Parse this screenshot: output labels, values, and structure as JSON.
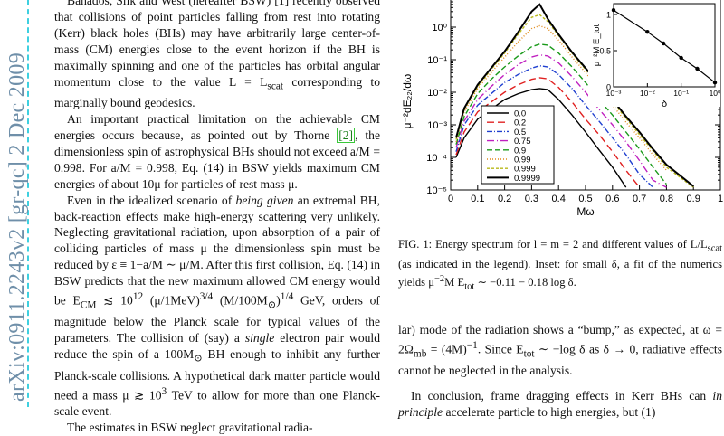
{
  "sidebar": {
    "arxiv_id": "arXiv:0911.2243v2  [gr-qc]  2 Dec 2009"
  },
  "left_column": {
    "p1": "Banados, Silk and West (hereafter BSW) [1] recently observed that collisions of point particles falling from rest into rotating (Kerr) black holes (BHs) may have arbitrarily large center-of-mass (CM) energies close to the event horizon if the BH is maximally spinning and one of the particles has orbital angular momentum close to the value L = L",
    "p1_sub": "scat",
    "p1_end": " corresponding to marginally bound geodesics.",
    "p2a": "An important practical limitation on the achievable CM energies occurs because, as pointed out by Thorne ",
    "p2_cite": "[2]",
    "p2b": ", the dimensionless spin of astrophysical BHs should not exceed a/M = 0.998. For a/M = 0.998, Eq. (14) in BSW yields maximum CM energies of about 10μ for particles of rest mass μ.",
    "p3a": "Even in the idealized scenario of ",
    "p3_em": "being given",
    "p3b": " an extremal BH, back-reaction effects make high-energy scattering very unlikely. Neglecting gravitational radiation, upon absorption of a pair of colliding particles of mass μ the dimensionless spin must be reduced by ε ≡ 1−a/M ∼ μ/M. After this first collision, Eq. (14) in BSW predicts that the new maximum allowed CM energy would be E",
    "p3_sub": "CM",
    "p3c": " ≲ 10",
    "p3_sup": "12",
    "p3d": " (μ/1MeV)",
    "p3_sup2": "3/4",
    "p3e": " (M/100M",
    "p3_sun": "⊙",
    "p3f": ")",
    "p3_sup3": "1/4",
    "p3g": " GeV, orders of magnitude below the Planck scale for typical values of the parameters. The collision of (say) a ",
    "p3_em2": "single",
    "p3h": " electron pair would reduce the spin of a 100M",
    "p3i": " BH enough to inhibit any further Planck-scale collisions. A hypothetical dark matter particle would need a mass μ ≳ 10",
    "p3_sup4": "3",
    "p3j": " TeV to allow for more than one Planck-scale event.",
    "p4": "The estimates in BSW neglect gravitational radia-"
  },
  "figure": {
    "ylabel": "μ⁻²dE₂₂/dω",
    "xlabel": "Mω",
    "y_ticks": [
      "10⁰",
      "10⁻¹",
      "10⁻²",
      "10⁻³",
      "10⁻⁴",
      "10⁻⁵"
    ],
    "x_ticks": [
      "0",
      "0.1",
      "0.2",
      "0.3",
      "0.4",
      "0.5",
      "0.6",
      "0.7",
      "0.8",
      "0.9",
      "1"
    ],
    "inset": {
      "ylabel": "μ⁻²M E_tot",
      "xlabel": "δ",
      "y_ticks": [
        "0",
        "0.5",
        "1"
      ],
      "x_ticks": [
        "10⁻³",
        "10⁻²",
        "10⁻¹",
        "10⁰"
      ]
    },
    "legend": [
      "0.0",
      "0.2",
      "0.5",
      "0.75",
      "0.9",
      "0.99",
      "0.999",
      "0.9999"
    ]
  },
  "chart_data": {
    "type": "line",
    "x": [
      0.02,
      0.05,
      0.1,
      0.15,
      0.2,
      0.25,
      0.3,
      0.33,
      0.36,
      0.4,
      0.45,
      0.5,
      0.55,
      0.6,
      0.65,
      0.7,
      0.75,
      0.8,
      0.9,
      1.0
    ],
    "series": [
      {
        "name": "0.0",
        "color": "#000000",
        "dash": "",
        "values": [
          0.0001,
          0.0004,
          0.0015,
          0.003,
          0.006,
          0.009,
          0.012,
          0.013,
          0.012,
          0.006,
          0.002,
          0.0006,
          0.00017,
          5e-05,
          1.2e-05,
          null,
          null,
          null,
          null,
          null
        ]
      },
      {
        "name": "0.2",
        "color": "#e02020",
        "dash": "8,4",
        "values": [
          0.00012,
          0.0006,
          0.0025,
          0.005,
          0.01,
          0.017,
          0.025,
          0.028,
          0.026,
          0.014,
          0.005,
          0.0015,
          0.0005,
          0.00015,
          4e-05,
          1.2e-05,
          null,
          null,
          null,
          null
        ]
      },
      {
        "name": "0.5",
        "color": "#2040d0",
        "dash": "6,2,1,2",
        "values": [
          0.00015,
          0.001,
          0.004,
          0.009,
          0.02,
          0.035,
          0.055,
          0.065,
          0.06,
          0.035,
          0.013,
          0.004,
          0.0013,
          0.0004,
          0.00012,
          3e-05,
          1.2e-05,
          null,
          null,
          null
        ]
      },
      {
        "name": "0.75",
        "color": "#c020c0",
        "dash": "8,3,1,3",
        "values": [
          0.0002,
          0.0013,
          0.006,
          0.015,
          0.035,
          0.07,
          0.12,
          0.14,
          0.13,
          0.08,
          0.03,
          0.01,
          0.003,
          0.001,
          0.0003,
          8e-05,
          2e-05,
          1.2e-05,
          null,
          null
        ]
      },
      {
        "name": "0.9",
        "color": "#1a9a1a",
        "dash": "6,3",
        "values": [
          0.00025,
          0.0018,
          0.009,
          0.025,
          0.06,
          0.13,
          0.25,
          0.3,
          0.28,
          0.16,
          0.06,
          0.02,
          0.006,
          0.002,
          0.0006,
          0.00018,
          5e-05,
          1.5e-05,
          null,
          null
        ]
      },
      {
        "name": "0.99",
        "color": "#e08a1a",
        "dash": "1,2",
        "values": [
          0.0003,
          0.0025,
          0.013,
          0.04,
          0.12,
          0.35,
          0.9,
          1.1,
          0.9,
          0.4,
          0.12,
          0.04,
          0.012,
          0.004,
          0.0012,
          0.0004,
          0.00012,
          4e-05,
          null,
          null
        ]
      },
      {
        "name": "0.999",
        "color": "#b8b81a",
        "dash": "3,2",
        "values": [
          0.00035,
          0.003,
          0.015,
          0.05,
          0.16,
          0.6,
          2.0,
          2.4,
          1.5,
          0.55,
          0.16,
          0.05,
          0.016,
          0.005,
          0.0016,
          0.0005,
          0.00016,
          5e-05,
          1.2e-05,
          null
        ]
      },
      {
        "name": "0.9999",
        "color": "#000000",
        "dash": "",
        "values": [
          0.0004,
          0.0032,
          0.017,
          0.055,
          0.18,
          0.7,
          3.0,
          5.0,
          1.8,
          0.6,
          0.17,
          0.055,
          0.018,
          0.006,
          0.0018,
          0.0006,
          0.00018,
          6e-05,
          1.3e-05,
          null
        ]
      }
    ],
    "xlim": [
      0,
      1
    ],
    "ylim": [
      1e-05,
      10
    ],
    "yscale": "log",
    "xlabel": "Mω",
    "ylabel": "μ⁻²dE₂₂/dω",
    "legend_position": "bottom-center",
    "inset": {
      "type": "scatter",
      "x": [
        0.001,
        0.01,
        0.03,
        0.1,
        0.3,
        1.0
      ],
      "y": [
        1.06,
        0.76,
        0.6,
        0.4,
        0.25,
        0.06
      ],
      "xscale": "log",
      "xlim": [
        0.001,
        1
      ],
      "ylim": [
        0,
        1.15
      ],
      "xlabel": "δ",
      "ylabel": "μ⁻²M E_tot"
    }
  },
  "caption": {
    "text": "FIG. 1: Energy spectrum for l = m = 2 and different values of L/L",
    "sub": "scat",
    "text2": " (as indicated in the legend). Inset: for small δ, a fit of the numerics yields μ",
    "sup": "−2",
    "text3": "M E",
    "sub2": "tot",
    "text4": " ∼ −0.11 − 0.18 log δ."
  },
  "right_column": {
    "p1a": "lar) mode of the radiation shows a “bump,” as expected, at ω = 2Ω",
    "p1_sub": "mb",
    "p1b": " = (4M)",
    "p1_sup": "−1",
    "p1c": ". Since E",
    "p1_sub2": "tot",
    "p1d": " ∼ −log δ as δ → 0, radiative effects cannot be neglected in the analysis.",
    "p2a": "In conclusion, frame dragging effects in Kerr BHs can ",
    "p2_em": "in principle",
    "p2b": " accelerate particle to high energies, but (1)"
  }
}
